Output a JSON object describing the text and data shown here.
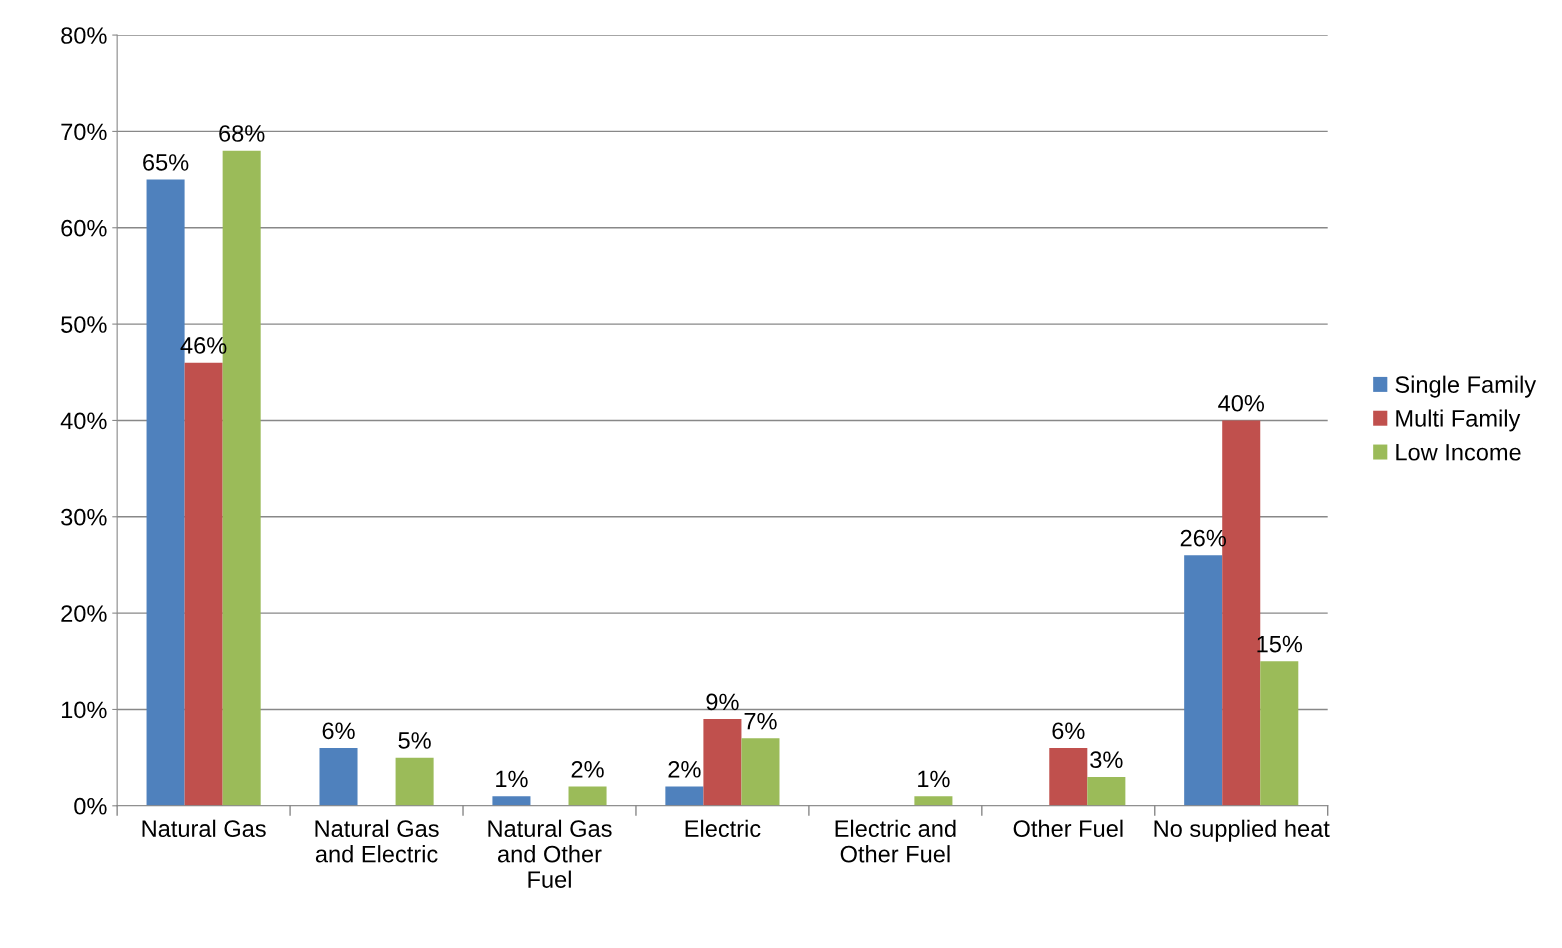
{
  "chart_data": {
    "type": "bar",
    "categories": [
      "Natural Gas",
      "Natural Gas\nand Electric",
      "Natural Gas\nand Other\nFuel",
      "Electric",
      "Electric and\nOther Fuel",
      "Other Fuel",
      "No supplied heat"
    ],
    "series": [
      {
        "name": "Single Family",
        "color": "#4f81bd",
        "values": [
          65,
          6,
          1,
          2,
          null,
          null,
          26
        ],
        "value_labels": [
          "65%",
          "6%",
          "1%",
          "2%",
          null,
          null,
          "26%"
        ]
      },
      {
        "name": "Multi Family",
        "color": "#c0504d",
        "values": [
          46,
          null,
          null,
          9,
          null,
          6,
          40
        ],
        "value_labels": [
          "46%",
          null,
          null,
          "9%",
          null,
          "6%",
          "40%"
        ]
      },
      {
        "name": "Low Income",
        "color": "#9bbb59",
        "values": [
          68,
          5,
          2,
          7,
          1,
          3,
          15
        ],
        "value_labels": [
          "68%",
          "5%",
          "2%",
          "7%",
          "1%",
          "3%",
          "15%"
        ]
      }
    ],
    "ylim": [
      0,
      80
    ],
    "yticks": [
      {
        "value": 0,
        "label": "0%"
      },
      {
        "value": 10,
        "label": "10%"
      },
      {
        "value": 20,
        "label": "20%"
      },
      {
        "value": 30,
        "label": "30%"
      },
      {
        "value": 40,
        "label": "40%"
      },
      {
        "value": 50,
        "label": "50%"
      },
      {
        "value": 60,
        "label": "60%"
      },
      {
        "value": 70,
        "label": "70%"
      },
      {
        "value": 80,
        "label": "80%"
      }
    ],
    "grid": "y",
    "legend": "right"
  }
}
